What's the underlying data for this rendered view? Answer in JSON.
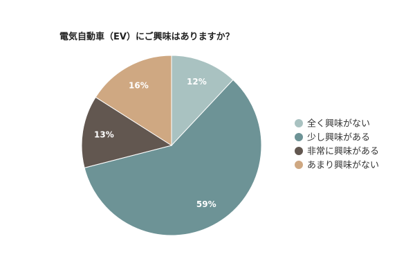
{
  "chart_data": {
    "type": "pie",
    "title": "電気自動車（EV）にご興味はありますか？",
    "slices": [
      {
        "label": "全く興味がない",
        "value": 12,
        "display": "12%",
        "color": "#a9c2c1"
      },
      {
        "label": "少し興味がある",
        "value": 59,
        "display": "59%",
        "color": "#6d9396"
      },
      {
        "label": "非常に興味がある",
        "value": 13,
        "display": "13%",
        "color": "#625750"
      },
      {
        "label": "あまり興味がない",
        "value": 16,
        "display": "16%",
        "color": "#cfa882"
      }
    ],
    "start_angle": "12 o'clock",
    "direction": "clockwise",
    "legend_position": "right",
    "slice_border_color": "#ffffff"
  }
}
